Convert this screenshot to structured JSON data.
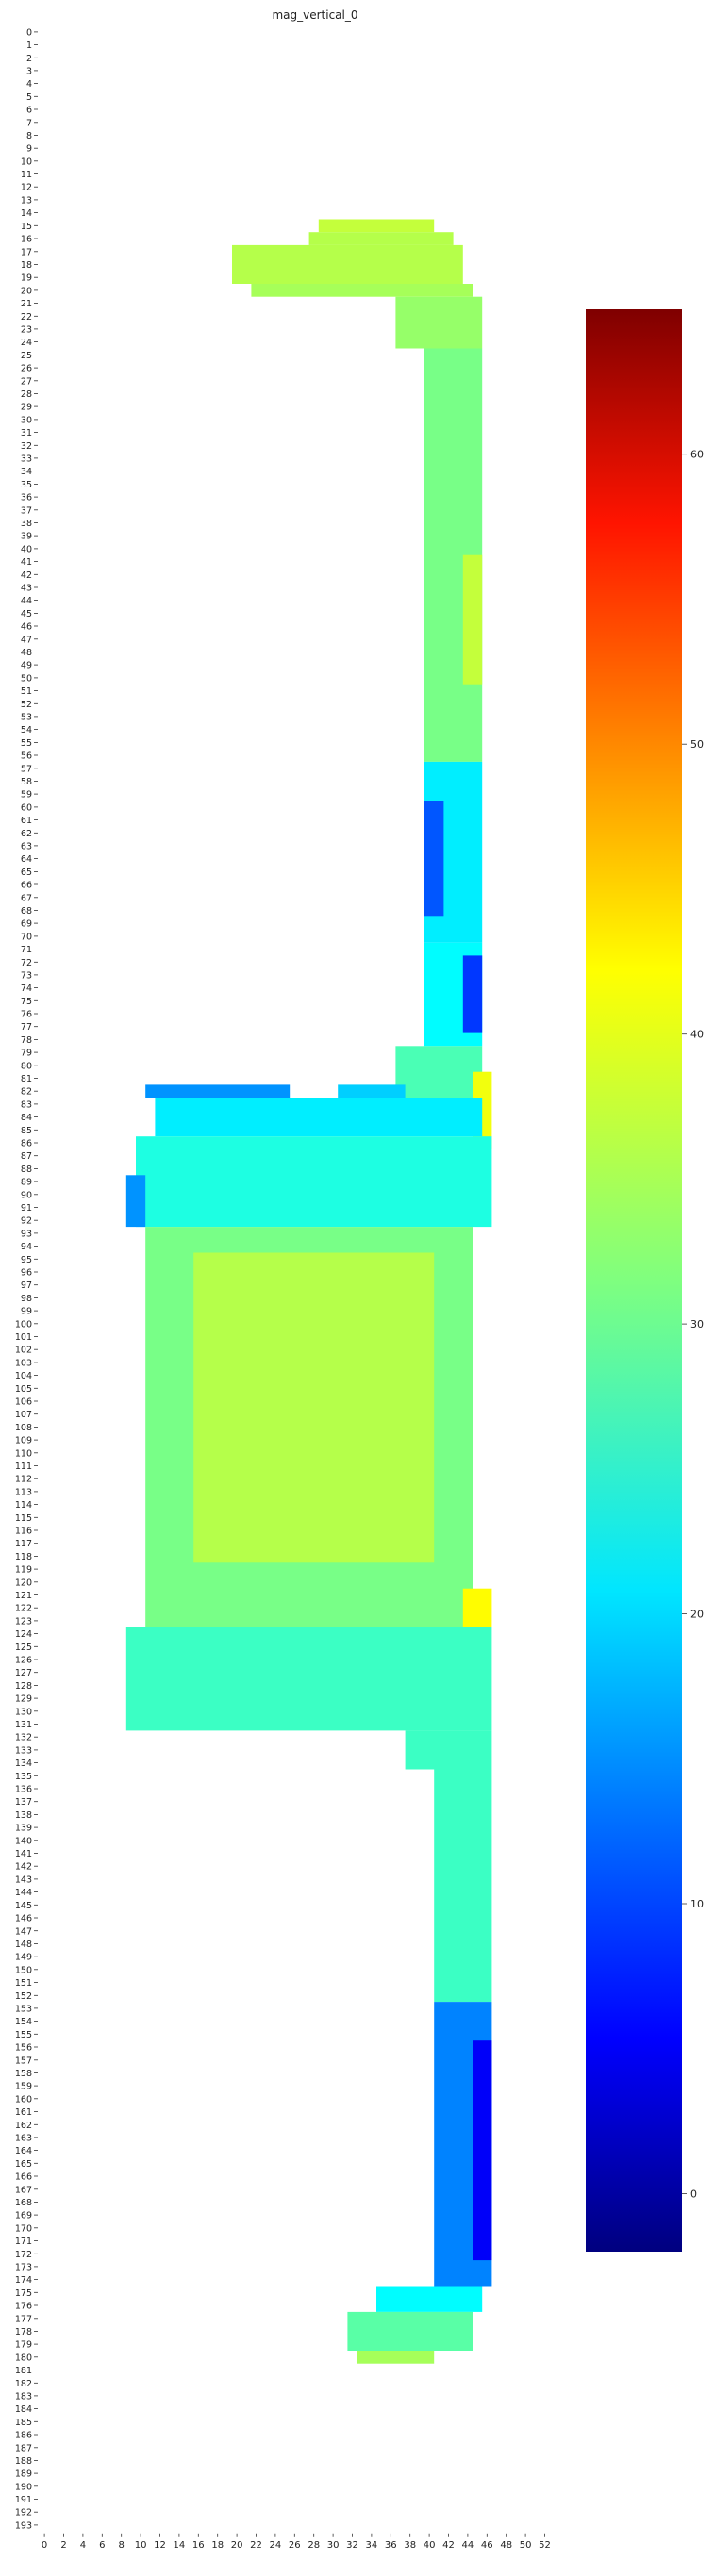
{
  "chart_data": {
    "type": "heatmap",
    "title": "mag_vertical_0",
    "xlabel": "",
    "ylabel": "",
    "colormap": "jet",
    "colorbar": {
      "min": -2,
      "max": 65,
      "ticks": [
        0,
        10,
        20,
        30,
        40,
        50,
        60
      ]
    },
    "x_ticks": [
      0,
      2,
      4,
      6,
      8,
      10,
      12,
      14,
      16,
      18,
      20,
      22,
      24,
      26,
      28,
      30,
      32,
      34,
      36,
      38,
      40,
      42,
      44,
      46,
      48,
      50,
      52
    ],
    "y_range": [
      0,
      193
    ],
    "x_range": [
      0,
      53
    ],
    "regions": [
      {
        "rows": [
          15,
          15
        ],
        "cols": [
          29,
          40
        ],
        "value": 36
      },
      {
        "rows": [
          16,
          16
        ],
        "cols": [
          28,
          42
        ],
        "value": 35
      },
      {
        "rows": [
          17,
          19
        ],
        "cols": [
          20,
          43
        ],
        "value": 35
      },
      {
        "rows": [
          20,
          20
        ],
        "cols": [
          22,
          44
        ],
        "value": 34
      },
      {
        "rows": [
          21,
          24
        ],
        "cols": [
          37,
          45
        ],
        "value": 33
      },
      {
        "rows": [
          25,
          56
        ],
        "cols": [
          40,
          45
        ],
        "value": 31
      },
      {
        "rows": [
          41,
          50
        ],
        "cols": [
          44,
          45
        ],
        "value": 36
      },
      {
        "rows": [
          57,
          70
        ],
        "cols": [
          40,
          45
        ],
        "value": 22
      },
      {
        "rows": [
          60,
          68
        ],
        "cols": [
          40,
          41
        ],
        "value": 12
      },
      {
        "rows": [
          71,
          78
        ],
        "cols": [
          40,
          45
        ],
        "value": 23
      },
      {
        "rows": [
          72,
          77
        ],
        "cols": [
          44,
          45
        ],
        "value": 10
      },
      {
        "rows": [
          79,
          82
        ],
        "cols": [
          37,
          45
        ],
        "value": 28
      },
      {
        "rows": [
          81,
          86
        ],
        "cols": [
          45,
          46
        ],
        "value": 39
      },
      {
        "rows": [
          82,
          82
        ],
        "cols": [
          11,
          25
        ],
        "value": 16
      },
      {
        "rows": [
          82,
          82
        ],
        "cols": [
          31,
          37
        ],
        "value": 20
      },
      {
        "rows": [
          83,
          85
        ],
        "cols": [
          12,
          45
        ],
        "value": 22
      },
      {
        "rows": [
          86,
          92
        ],
        "cols": [
          10,
          46
        ],
        "value": 25
      },
      {
        "rows": [
          89,
          92
        ],
        "cols": [
          9,
          10
        ],
        "value": 16
      },
      {
        "rows": [
          93,
          123
        ],
        "cols": [
          11,
          44
        ],
        "value": 31
      },
      {
        "rows": [
          95,
          118
        ],
        "cols": [
          16,
          40
        ],
        "value": 35
      },
      {
        "rows": [
          121,
          123
        ],
        "cols": [
          44,
          46
        ],
        "value": 40
      },
      {
        "rows": [
          124,
          131
        ],
        "cols": [
          9,
          46
        ],
        "value": 27
      },
      {
        "rows": [
          132,
          134
        ],
        "cols": [
          38,
          46
        ],
        "value": 27
      },
      {
        "rows": [
          135,
          152
        ],
        "cols": [
          41,
          46
        ],
        "value": 27
      },
      {
        "rows": [
          153,
          174
        ],
        "cols": [
          41,
          46
        ],
        "value": 15
      },
      {
        "rows": [
          156,
          172
        ],
        "cols": [
          45,
          46
        ],
        "value": 6
      },
      {
        "rows": [
          175,
          176
        ],
        "cols": [
          35,
          45
        ],
        "value": 23
      },
      {
        "rows": [
          177,
          179
        ],
        "cols": [
          32,
          44
        ],
        "value": 29
      },
      {
        "rows": [
          180,
          180
        ],
        "cols": [
          33,
          40
        ],
        "value": 34
      }
    ]
  }
}
